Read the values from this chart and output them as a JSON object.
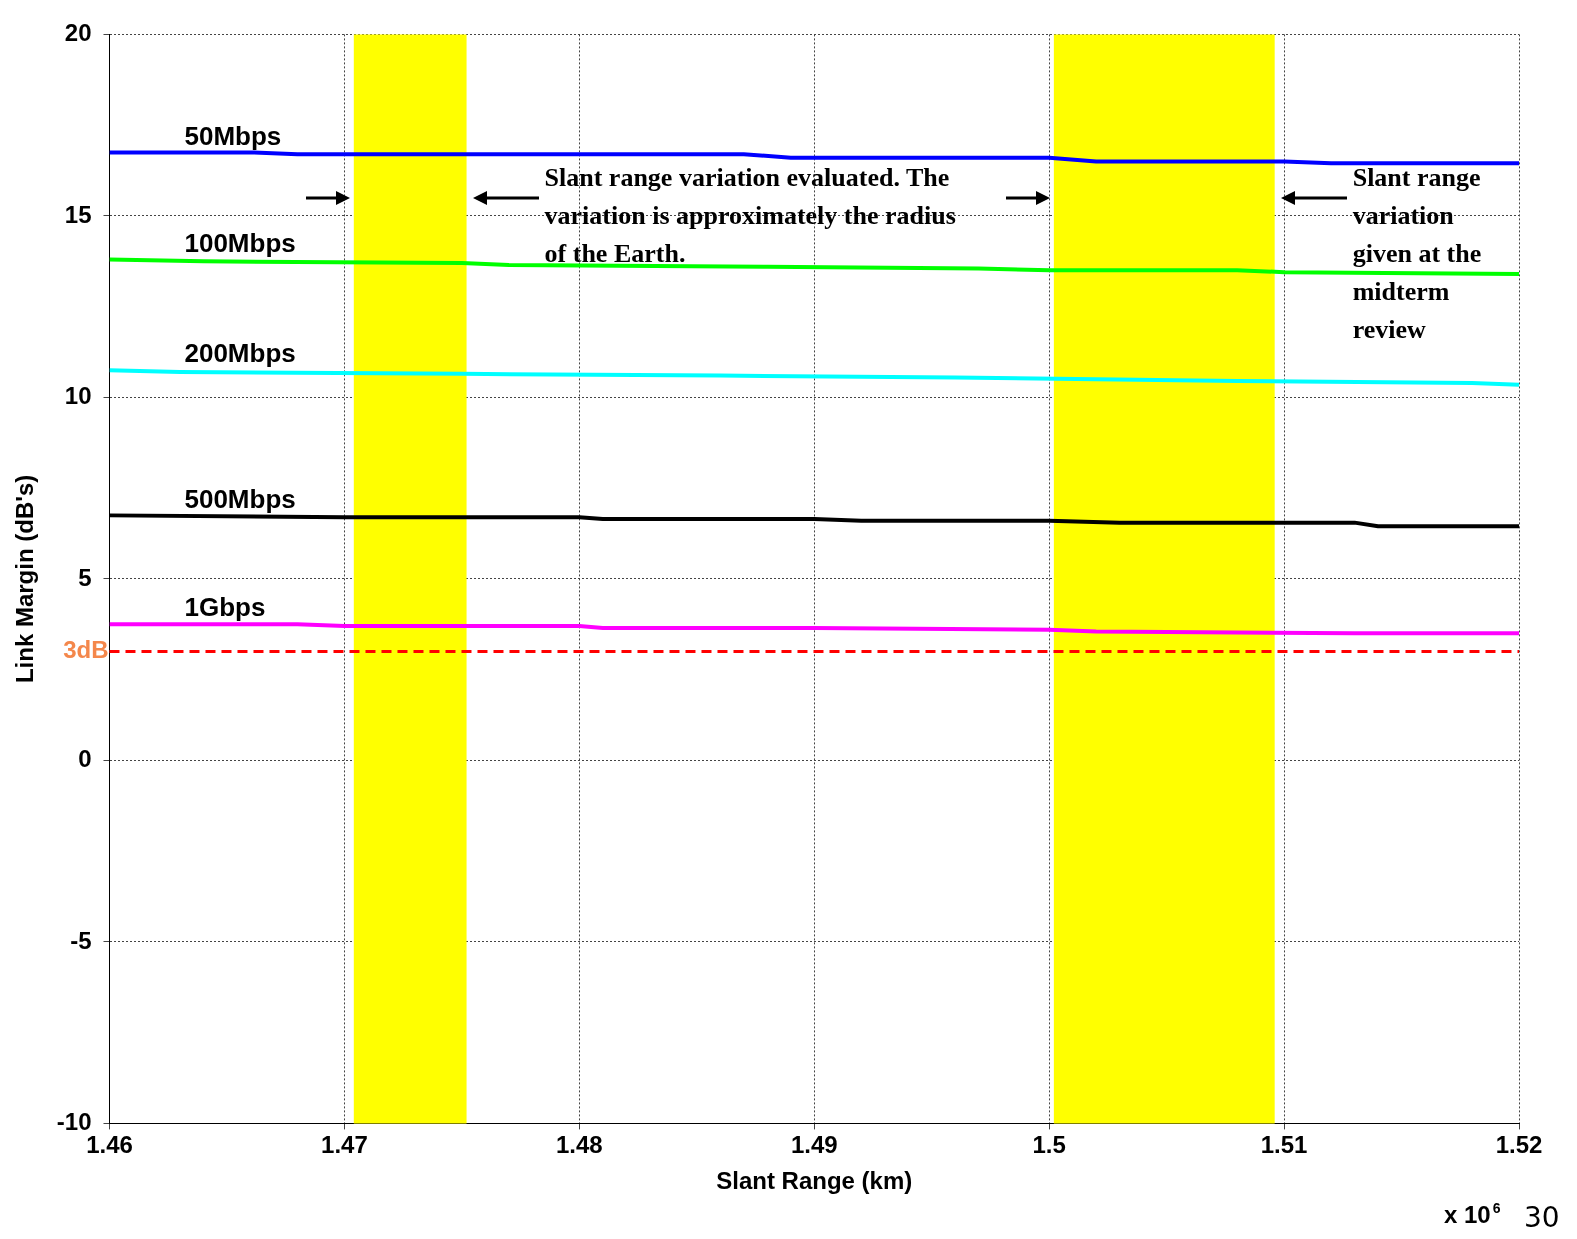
{
  "chart_data": {
    "type": "line",
    "xlabel": "Slant Range (km)",
    "ylabel": "Link Margin (dB's)",
    "xlim": [
      1.46,
      1.52
    ],
    "xticks": [
      1.46,
      1.47,
      1.48,
      1.49,
      1.5,
      1.51,
      1.52
    ],
    "ylim": [
      -10,
      20
    ],
    "yticks": [
      -10,
      -5,
      0,
      5,
      10,
      15,
      20
    ],
    "grid": true,
    "legend": false,
    "marker": "none",
    "line_style": "solid",
    "series": [
      {
        "name": "50Mbps",
        "color": "#0000ff",
        "x": [
          1.46,
          1.466,
          1.468,
          1.487,
          1.489,
          1.5,
          1.502,
          1.51,
          1.512,
          1.52
        ],
        "values": [
          16.75,
          16.75,
          16.7,
          16.7,
          16.6,
          16.6,
          16.5,
          16.5,
          16.45,
          16.45
        ]
      },
      {
        "name": "100Mbps",
        "color": "#00ff00",
        "x": [
          1.46,
          1.464,
          1.475,
          1.477,
          1.488,
          1.497,
          1.5,
          1.508,
          1.51,
          1.52
        ],
        "values": [
          13.8,
          13.75,
          13.7,
          13.65,
          13.6,
          13.55,
          13.5,
          13.5,
          13.45,
          13.4
        ]
      },
      {
        "name": "200Mbps",
        "color": "#00ffff",
        "x": [
          1.46,
          1.463,
          1.475,
          1.486,
          1.496,
          1.508,
          1.518,
          1.52
        ],
        "values": [
          10.75,
          10.7,
          10.65,
          10.6,
          10.55,
          10.45,
          10.4,
          10.35
        ]
      },
      {
        "name": "500Mbps",
        "color": "#000000",
        "x": [
          1.46,
          1.47,
          1.48,
          1.481,
          1.49,
          1.492,
          1.5,
          1.503,
          1.513,
          1.514,
          1.52
        ],
        "values": [
          6.75,
          6.7,
          6.7,
          6.65,
          6.65,
          6.6,
          6.6,
          6.55,
          6.55,
          6.45,
          6.45
        ]
      },
      {
        "name": "1Gbps",
        "color": "#ff00ff",
        "x": [
          1.46,
          1.468,
          1.47,
          1.48,
          1.481,
          1.49,
          1.5,
          1.502,
          1.513,
          1.52
        ],
        "values": [
          3.75,
          3.75,
          3.7,
          3.7,
          3.65,
          3.65,
          3.6,
          3.55,
          3.5,
          3.5
        ]
      }
    ],
    "ref_lines": [
      {
        "axis": "y",
        "value": 3,
        "label": "3dB",
        "color": "#ff0000",
        "line_style": "dashed"
      }
    ],
    "bands": [
      {
        "axis": "x",
        "from": 1.4704,
        "to": 1.4752,
        "color": "#ffff00"
      },
      {
        "axis": "x",
        "from": 1.5002,
        "to": 1.5096,
        "color": "#ffff00"
      }
    ],
    "annotations": [
      {
        "text": "Slant range variation evaluated. The variation is approximately the radius of the Earth.",
        "x": 1.4752,
        "y": 15.5
      },
      {
        "text": "Slant range variation given at the midterm review",
        "x": 1.5096,
        "y": 15.5
      },
      "x 10$^{6}$",
      "30"
    ]
  }
}
